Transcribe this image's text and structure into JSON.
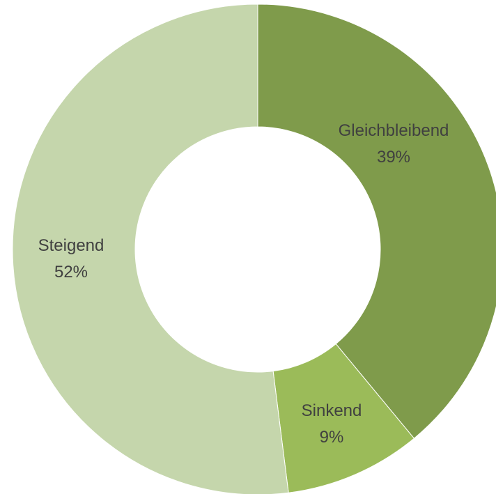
{
  "chart_data": {
    "type": "pie",
    "variant": "donut",
    "title": "",
    "slices": [
      {
        "label": "Gleichbleibend",
        "value": 39,
        "value_label": "39%",
        "color": "#7f9b4b"
      },
      {
        "label": "Sinkend",
        "value": 9,
        "value_label": "9%",
        "color": "#9bbb59"
      },
      {
        "label": "Steigend",
        "value": 52,
        "value_label": "52%",
        "color": "#c5d6ac"
      }
    ],
    "start_angle_deg": 0,
    "direction": "clockwise",
    "legend": "none"
  }
}
